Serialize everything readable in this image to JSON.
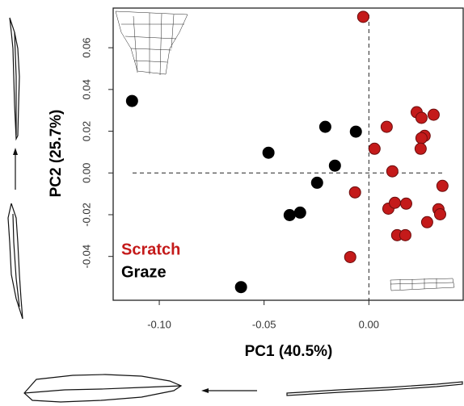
{
  "chart_data": {
    "type": "scatter",
    "x_label": "PC1 (40.5%)",
    "y_label": "PC2 (25.7%)",
    "xlim": [
      -0.122,
      0.045
    ],
    "ylim": [
      -0.061,
      0.079
    ],
    "xticks": [
      {
        "value": -0.1,
        "label": "-0.10"
      },
      {
        "value": -0.05,
        "label": "-0.05"
      },
      {
        "value": 0,
        "label": "0.00"
      }
    ],
    "yticks": [
      -0.04,
      -0.02,
      {
        "value": 0,
        "label": "0.00"
      },
      0.02,
      0.04,
      0.06
    ],
    "reference_lines": {
      "x": 0,
      "y": 0
    },
    "series": [
      {
        "name": "Scratch",
        "color": "#c41a1a",
        "x": [
          -0.0027,
          -0.0066,
          -0.0089,
          0.0027,
          0.0085,
          0.0112,
          0.0093,
          0.0124,
          0.0135,
          0.0174,
          0.0178,
          0.0228,
          0.0251,
          0.0266,
          0.0251,
          0.0247,
          0.0309,
          0.0278,
          0.0332,
          0.034,
          0.0351
        ],
        "values": [
          0.0748,
          -0.0093,
          -0.0403,
          0.0116,
          0.0221,
          0.0008,
          -0.0171,
          -0.0143,
          -0.0298,
          -0.0298,
          -0.0147,
          0.0291,
          0.0264,
          0.0178,
          0.0167,
          0.0116,
          0.0279,
          -0.0236,
          -0.0174,
          -0.0198,
          -0.0062
        ]
      },
      {
        "name": "Graze",
        "color": "#000000",
        "x": [
          -0.113,
          -0.061,
          -0.0479,
          -0.0208,
          -0.0062,
          -0.0162,
          -0.0247,
          -0.0378,
          -0.0328
        ],
        "values": [
          0.0345,
          -0.0547,
          0.0097,
          0.0221,
          0.0198,
          0.0035,
          -0.0047,
          -0.0202,
          -0.019
        ]
      }
    ]
  }
}
